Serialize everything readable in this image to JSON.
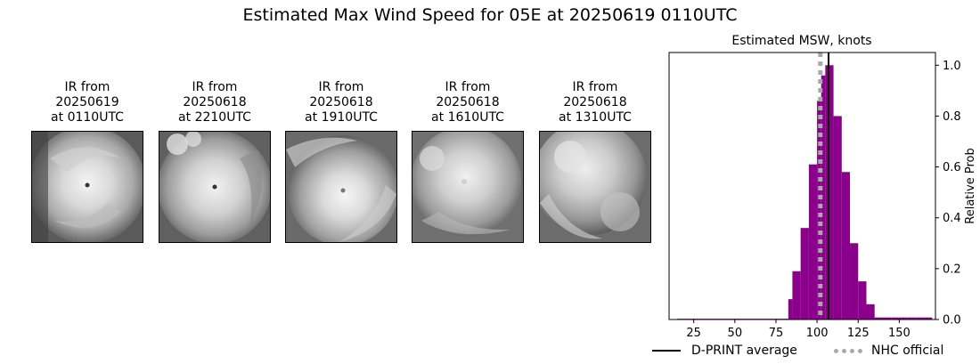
{
  "figure": {
    "title": "Estimated Max Wind Speed for 05E at 20250619 0110UTC"
  },
  "ir_panels": [
    {
      "line1": "IR from",
      "line2": "20250619",
      "line3": "at 0110UTC"
    },
    {
      "line1": "IR from",
      "line2": "20250618",
      "line3": "at 2210UTC"
    },
    {
      "line1": "IR from",
      "line2": "20250618",
      "line3": "at 1910UTC"
    },
    {
      "line1": "IR from",
      "line2": "20250618",
      "line3": "at 1610UTC"
    },
    {
      "line1": "IR from",
      "line2": "20250618",
      "line3": "at 1310UTC"
    }
  ],
  "legend": {
    "dprint_label": "D-PRINT average",
    "nhc_label": "NHC official"
  },
  "colors": {
    "bar": "#8b008b",
    "dprint_line": "#000000",
    "nhc_line": "#a9a9a9"
  },
  "chart_data": {
    "type": "bar",
    "title": "Estimated MSW, knots",
    "xlabel": "",
    "ylabel": "Relative Prob",
    "xlim": [
      10,
      172
    ],
    "ylim": [
      0,
      1.05
    ],
    "xticks": [
      25,
      50,
      75,
      100,
      125,
      150
    ],
    "yticks": [
      0.0,
      0.2,
      0.4,
      0.6,
      0.8,
      1.0
    ],
    "y_axis_side": "right",
    "bin_width": 5,
    "bins": [
      {
        "x": 15,
        "value": 0.003
      },
      {
        "x": 20,
        "value": 0.003
      },
      {
        "x": 25,
        "value": 0.003
      },
      {
        "x": 30,
        "value": 0.003
      },
      {
        "x": 35,
        "value": 0.003
      },
      {
        "x": 40,
        "value": 0.003
      },
      {
        "x": 45,
        "value": 0.003
      },
      {
        "x": 50,
        "value": 0.003
      },
      {
        "x": 55,
        "value": 0.003
      },
      {
        "x": 60,
        "value": 0.003
      },
      {
        "x": 65,
        "value": 0.003
      },
      {
        "x": 70,
        "value": 0.003
      },
      {
        "x": 75,
        "value": 0.003
      },
      {
        "x": 80,
        "value": 0.003
      },
      {
        "x": 82.5,
        "value": 0.08
      },
      {
        "x": 85,
        "value": 0.19
      },
      {
        "x": 90,
        "value": 0.36
      },
      {
        "x": 95,
        "value": 0.61
      },
      {
        "x": 100,
        "value": 0.86
      },
      {
        "x": 102.5,
        "value": 0.96
      },
      {
        "x": 105,
        "value": 1.0
      },
      {
        "x": 110,
        "value": 0.8
      },
      {
        "x": 115,
        "value": 0.58
      },
      {
        "x": 120,
        "value": 0.3
      },
      {
        "x": 125,
        "value": 0.15
      },
      {
        "x": 130,
        "value": 0.06
      },
      {
        "x": 135,
        "value": 0.008
      },
      {
        "x": 140,
        "value": 0.008
      },
      {
        "x": 145,
        "value": 0.008
      },
      {
        "x": 150,
        "value": 0.008
      },
      {
        "x": 155,
        "value": 0.008
      },
      {
        "x": 160,
        "value": 0.008
      },
      {
        "x": 165,
        "value": 0.008
      }
    ],
    "dprint_average": 107,
    "nhc_official": 102
  }
}
